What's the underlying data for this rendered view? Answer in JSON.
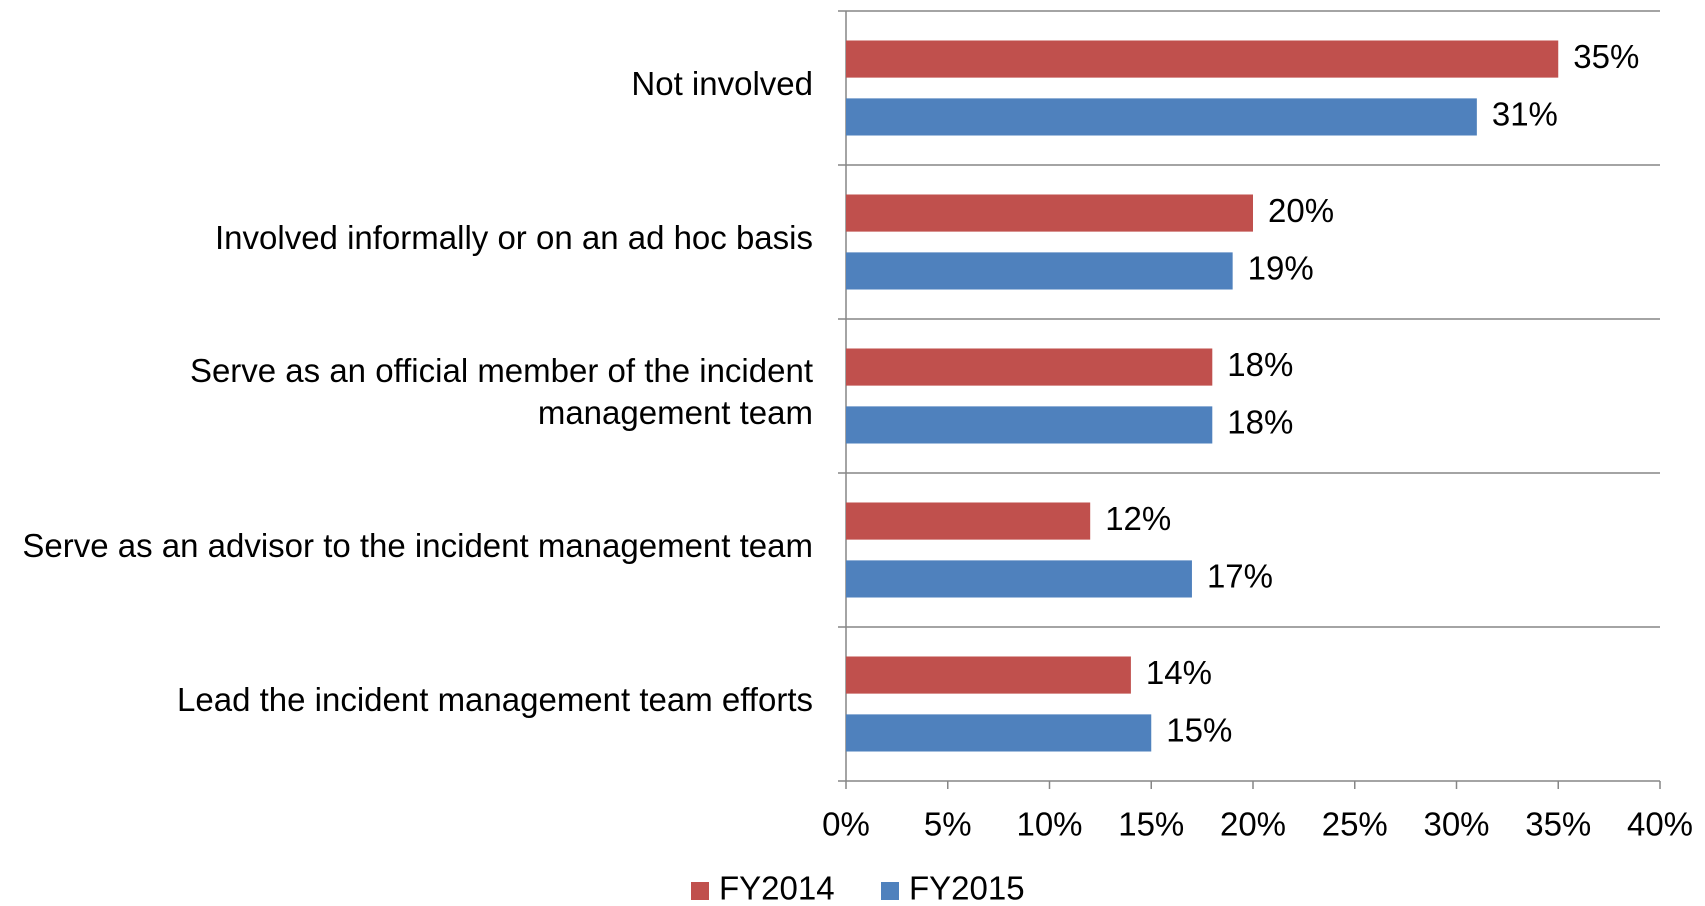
{
  "chart_data": {
    "type": "barh",
    "categories": [
      "Not involved",
      "Involved informally or on an ad hoc basis",
      "Serve as an official member of the incident management team",
      "Serve as an advisor to the incident management team",
      "Lead the incident management team efforts"
    ],
    "series": [
      {
        "name": "FY2014",
        "color": "#c0504d",
        "values": [
          35,
          20,
          18,
          12,
          14
        ],
        "value_labels": [
          "35%",
          "20%",
          "18%",
          "12%",
          "14%"
        ]
      },
      {
        "name": "FY2015",
        "color": "#4f81bd",
        "values": [
          31,
          19,
          18,
          17,
          15
        ],
        "value_labels": [
          "31%",
          "19%",
          "18%",
          "17%",
          "15%"
        ]
      }
    ],
    "xlim": [
      0,
      40
    ],
    "xticks": [
      {
        "value": 0,
        "label": "0%"
      },
      {
        "value": 5,
        "label": "5%"
      },
      {
        "value": 10,
        "label": "10%"
      },
      {
        "value": 15,
        "label": "15%"
      },
      {
        "value": 20,
        "label": "20%"
      },
      {
        "value": 25,
        "label": "25%"
      },
      {
        "value": 30,
        "label": "30%"
      },
      {
        "value": 35,
        "label": "35%"
      },
      {
        "value": 40,
        "label": "40%"
      }
    ],
    "legend": "bottom"
  }
}
